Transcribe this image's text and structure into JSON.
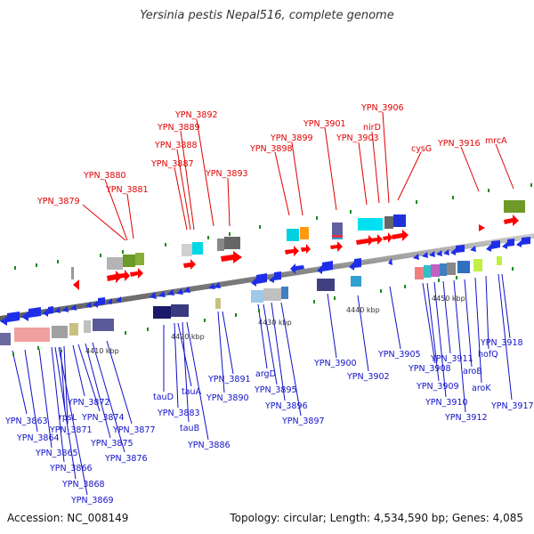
{
  "title": "Yersinia pestis Nepal516, complete genome",
  "footer": {
    "accession": "Accession: NC_008149",
    "summary": "Topology: circular; Length: 4,534,590 bp; Genes: 4,085"
  },
  "colors": {
    "top_label": "#e00000",
    "bottom_label": "#1010c8",
    "forward_gene": "#ff0000",
    "reverse_gene": "#1e2ee8",
    "backbone": "#888888"
  },
  "scale_labels": [
    "4410 kbp",
    "4420 kbp",
    "4430 kbp",
    "4440 kbp",
    "4450 kbp"
  ],
  "top_labels": [
    "YPN_3879",
    "YPN_3880",
    "YPN_3881",
    "YPN_3887",
    "YPN_3888",
    "YPN_3889",
    "YPN_3892",
    "YPN_3893",
    "YPN_3898",
    "YPN_3899",
    "YPN_3901",
    "YPN_3903",
    "nirD",
    "YPN_3906",
    "cysG",
    "YPN_3916",
    "mrcA"
  ],
  "bottom_labels": [
    "YPN_3863",
    "YPN_3864",
    "YPN_3865",
    "YPN_3866",
    "YPN_3868",
    "YPN_3869",
    "rpsL",
    "YPN_3871",
    "YPN_3872",
    "YPN_3874",
    "YPN_3875",
    "YPN_3876",
    "YPN_3877",
    "tauD",
    "tauA",
    "YPN_3883",
    "tauB",
    "YPN_3886",
    "YPN_3890",
    "YPN_3891",
    "argD",
    "YPN_3895",
    "YPN_3896",
    "YPN_3897",
    "YPN_3900",
    "YPN_3902",
    "YPN_3905",
    "YPN_3908",
    "YPN_3909",
    "YPN_3910",
    "YPN_3911",
    "YPN_3912",
    "aroB",
    "aroK",
    "hofQ",
    "YPN_3917",
    "YPN_3918"
  ]
}
